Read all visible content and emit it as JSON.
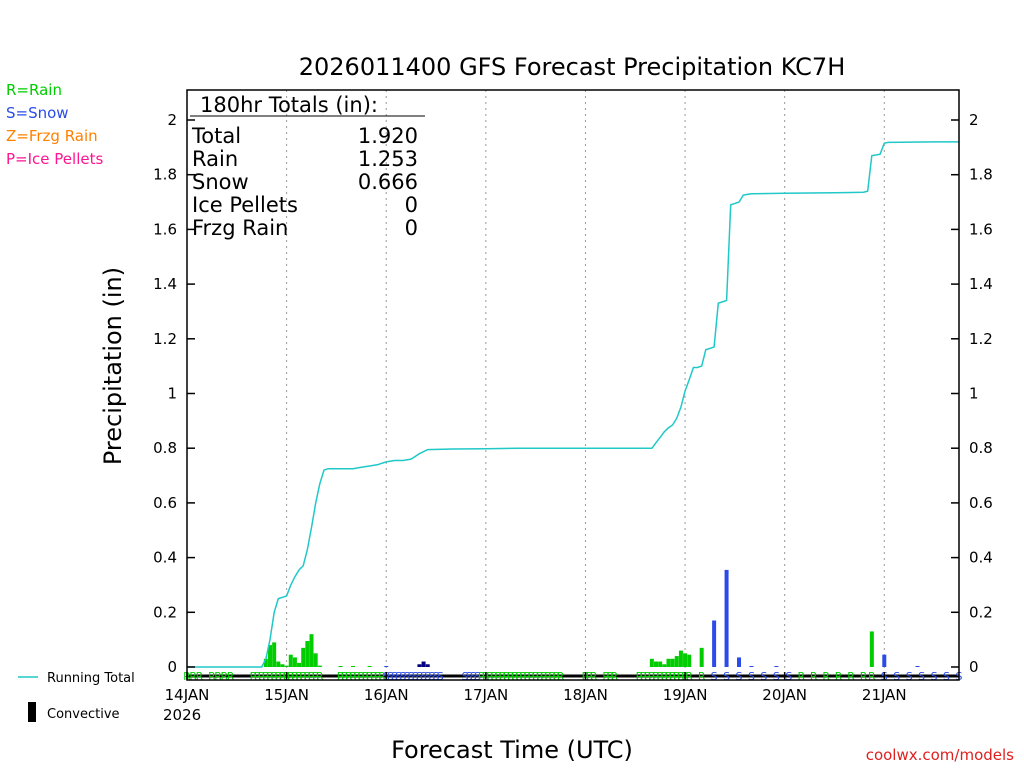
{
  "chart_data": {
    "type": "line",
    "title": "2026011400 GFS Forecast Precipitation KC7H",
    "xlabel": "Forecast Time (UTC)",
    "ylabel": "Precipitation (in)",
    "ylim": [
      0,
      2.1
    ],
    "yticks": [
      "0",
      "0.2",
      "0.4",
      "0.6",
      "0.8",
      "1",
      "1.2",
      "1.4",
      "1.6",
      "1.8",
      "2"
    ],
    "xlim_hours": [
      0,
      186
    ],
    "xticks": [
      {
        "label": "14JAN",
        "hour": 0
      },
      {
        "label": "15JAN",
        "hour": 24
      },
      {
        "label": "16JAN",
        "hour": 48
      },
      {
        "label": "17JAN",
        "hour": 72
      },
      {
        "label": "18JAN",
        "hour": 96
      },
      {
        "label": "19JAN",
        "hour": 120
      },
      {
        "label": "20JAN",
        "hour": 144
      },
      {
        "label": "21JAN",
        "hour": 168
      }
    ],
    "year_label": "2026",
    "grid": "dotted-vertical",
    "legend_types": [
      {
        "label": "R=Rain",
        "color": "#00cc00"
      },
      {
        "label": "S=Snow",
        "color": "#2b4be8"
      },
      {
        "label": "Z=Frzg Rain",
        "color": "#ff8000"
      },
      {
        "label": "P=Ice Pellets",
        "color": "#ff1493"
      }
    ],
    "legend_series": {
      "running_total": "Running Total",
      "convective": "Convective"
    },
    "totals_header": "180hr Totals (in):",
    "totals": [
      {
        "label": "Total",
        "value": "1.920"
      },
      {
        "label": "Rain",
        "value": "1.253"
      },
      {
        "label": "Snow",
        "value": "0.666"
      },
      {
        "label": "Ice Pellets",
        "value": "0"
      },
      {
        "label": "Frzg Rain",
        "value": "0"
      }
    ],
    "watermark": "coolwx.com/models",
    "running_total_color": "#20c8c8",
    "running_total": [
      [
        0,
        0
      ],
      [
        18,
        0
      ],
      [
        19,
        0.03
      ],
      [
        20,
        0.1
      ],
      [
        21,
        0.2
      ],
      [
        22,
        0.25
      ],
      [
        23,
        0.255
      ],
      [
        24,
        0.26
      ],
      [
        25,
        0.3
      ],
      [
        26,
        0.33
      ],
      [
        27,
        0.355
      ],
      [
        28,
        0.37
      ],
      [
        29,
        0.43
      ],
      [
        30,
        0.51
      ],
      [
        31,
        0.6
      ],
      [
        32,
        0.67
      ],
      [
        33,
        0.72
      ],
      [
        34,
        0.725
      ],
      [
        36,
        0.725
      ],
      [
        40,
        0.725
      ],
      [
        42,
        0.73
      ],
      [
        44,
        0.735
      ],
      [
        46,
        0.74
      ],
      [
        48,
        0.75
      ],
      [
        50,
        0.755
      ],
      [
        52,
        0.755
      ],
      [
        54,
        0.76
      ],
      [
        56,
        0.78
      ],
      [
        58,
        0.795
      ],
      [
        64,
        0.797
      ],
      [
        72,
        0.798
      ],
      [
        80,
        0.8
      ],
      [
        96,
        0.8
      ],
      [
        108,
        0.8
      ],
      [
        112,
        0.8
      ],
      [
        113,
        0.82
      ],
      [
        114,
        0.84
      ],
      [
        115,
        0.86
      ],
      [
        116,
        0.875
      ],
      [
        117,
        0.885
      ],
      [
        118,
        0.91
      ],
      [
        119,
        0.95
      ],
      [
        120,
        1.01
      ],
      [
        121,
        1.05
      ],
      [
        122,
        1.095
      ],
      [
        123,
        1.095
      ],
      [
        124,
        1.1
      ],
      [
        125,
        1.16
      ],
      [
        126,
        1.165
      ],
      [
        127,
        1.17
      ],
      [
        128,
        1.33
      ],
      [
        129,
        1.335
      ],
      [
        130,
        1.34
      ],
      [
        131,
        1.69
      ],
      [
        132,
        1.695
      ],
      [
        133,
        1.7
      ],
      [
        134,
        1.725
      ],
      [
        135,
        1.728
      ],
      [
        136,
        1.73
      ],
      [
        144,
        1.732
      ],
      [
        156,
        1.734
      ],
      [
        160,
        1.735
      ],
      [
        163,
        1.736
      ],
      [
        164,
        1.74
      ],
      [
        165,
        1.87
      ],
      [
        166,
        1.872
      ],
      [
        167,
        1.875
      ],
      [
        168,
        1.915
      ],
      [
        169,
        1.918
      ],
      [
        172,
        1.919
      ],
      [
        180,
        1.92
      ],
      [
        186,
        1.92
      ]
    ],
    "bars": [
      {
        "hour": 19,
        "value": 0.03,
        "type": "rain"
      },
      {
        "hour": 20,
        "value": 0.08,
        "type": "rain"
      },
      {
        "hour": 21,
        "value": 0.09,
        "type": "rain"
      },
      {
        "hour": 22,
        "value": 0.02,
        "type": "rain"
      },
      {
        "hour": 23,
        "value": 0.01,
        "type": "rain"
      },
      {
        "hour": 24,
        "value": 0.005,
        "type": "rain"
      },
      {
        "hour": 25,
        "value": 0.045,
        "type": "rain"
      },
      {
        "hour": 26,
        "value": 0.035,
        "type": "rain"
      },
      {
        "hour": 27,
        "value": 0.015,
        "type": "rain"
      },
      {
        "hour": 28,
        "value": 0.07,
        "type": "rain"
      },
      {
        "hour": 29,
        "value": 0.095,
        "type": "rain"
      },
      {
        "hour": 30,
        "value": 0.12,
        "type": "rain"
      },
      {
        "hour": 31,
        "value": 0.05,
        "type": "rain"
      },
      {
        "hour": 32,
        "value": 0.005,
        "type": "rain"
      },
      {
        "hour": 37,
        "value": 0.003,
        "type": "rain"
      },
      {
        "hour": 40,
        "value": 0.003,
        "type": "rain"
      },
      {
        "hour": 44,
        "value": 0.003,
        "type": "rain"
      },
      {
        "hour": 48,
        "value": 0.003,
        "type": "snow"
      },
      {
        "hour": 56,
        "value": 0.01,
        "type": "convective"
      },
      {
        "hour": 57,
        "value": 0.02,
        "type": "convective"
      },
      {
        "hour": 58,
        "value": 0.01,
        "type": "convective"
      },
      {
        "hour": 112,
        "value": 0.03,
        "type": "rain"
      },
      {
        "hour": 113,
        "value": 0.02,
        "type": "rain"
      },
      {
        "hour": 114,
        "value": 0.02,
        "type": "rain"
      },
      {
        "hour": 115,
        "value": 0.01,
        "type": "rain"
      },
      {
        "hour": 116,
        "value": 0.03,
        "type": "rain"
      },
      {
        "hour": 117,
        "value": 0.03,
        "type": "rain"
      },
      {
        "hour": 118,
        "value": 0.04,
        "type": "rain"
      },
      {
        "hour": 119,
        "value": 0.06,
        "type": "rain"
      },
      {
        "hour": 120,
        "value": 0.05,
        "type": "rain"
      },
      {
        "hour": 121,
        "value": 0.045,
        "type": "rain"
      },
      {
        "hour": 124,
        "value": 0.07,
        "type": "rain"
      },
      {
        "hour": 127,
        "value": 0.17,
        "type": "snow"
      },
      {
        "hour": 130,
        "value": 0.355,
        "type": "snow"
      },
      {
        "hour": 133,
        "value": 0.035,
        "type": "snow"
      },
      {
        "hour": 136,
        "value": 0.003,
        "type": "snow"
      },
      {
        "hour": 142,
        "value": 0.003,
        "type": "snow"
      },
      {
        "hour": 165,
        "value": 0.13,
        "type": "rain"
      },
      {
        "hour": 168,
        "value": 0.045,
        "type": "snow"
      },
      {
        "hour": 176,
        "value": 0.003,
        "type": "snow"
      }
    ],
    "ptype_markers": [
      {
        "hour": 0,
        "type": "R"
      },
      {
        "hour": 1.5,
        "type": "R"
      },
      {
        "hour": 3,
        "type": "R"
      },
      {
        "hour": 6,
        "type": "R"
      },
      {
        "hour": 7.5,
        "type": "R"
      },
      {
        "hour": 9,
        "type": "R"
      },
      {
        "hour": 10.5,
        "type": "R"
      },
      {
        "hour": 16,
        "type": "R"
      },
      {
        "hour": 17,
        "type": "R"
      },
      {
        "hour": 18,
        "type": "R"
      },
      {
        "hour": 19,
        "type": "R"
      },
      {
        "hour": 20,
        "type": "R"
      },
      {
        "hour": 21,
        "type": "R"
      },
      {
        "hour": 22,
        "type": "R"
      },
      {
        "hour": 23,
        "type": "R"
      },
      {
        "hour": 24,
        "type": "R"
      },
      {
        "hour": 25,
        "type": "R"
      },
      {
        "hour": 26,
        "type": "R"
      },
      {
        "hour": 27,
        "type": "R"
      },
      {
        "hour": 28,
        "type": "R"
      },
      {
        "hour": 29,
        "type": "R"
      },
      {
        "hour": 30,
        "type": "R"
      },
      {
        "hour": 31,
        "type": "R"
      },
      {
        "hour": 32,
        "type": "R"
      },
      {
        "hour": 37,
        "type": "R"
      },
      {
        "hour": 38,
        "type": "R"
      },
      {
        "hour": 39,
        "type": "R"
      },
      {
        "hour": 40,
        "type": "R"
      },
      {
        "hour": 41,
        "type": "R"
      },
      {
        "hour": 42,
        "type": "R"
      },
      {
        "hour": 43,
        "type": "R"
      },
      {
        "hour": 44,
        "type": "R"
      },
      {
        "hour": 45,
        "type": "R"
      },
      {
        "hour": 46,
        "type": "R"
      },
      {
        "hour": 47,
        "type": "R"
      },
      {
        "hour": 48,
        "type": "S"
      },
      {
        "hour": 49,
        "type": "S"
      },
      {
        "hour": 50,
        "type": "S"
      },
      {
        "hour": 51,
        "type": "S"
      },
      {
        "hour": 52,
        "type": "S"
      },
      {
        "hour": 53,
        "type": "S"
      },
      {
        "hour": 54,
        "type": "S"
      },
      {
        "hour": 55,
        "type": "S"
      },
      {
        "hour": 56,
        "type": "S"
      },
      {
        "hour": 57,
        "type": "S"
      },
      {
        "hour": 58,
        "type": "S"
      },
      {
        "hour": 59,
        "type": "S"
      },
      {
        "hour": 60,
        "type": "S"
      },
      {
        "hour": 61,
        "type": "S"
      },
      {
        "hour": 67,
        "type": "S"
      },
      {
        "hour": 68,
        "type": "S"
      },
      {
        "hour": 69,
        "type": "S"
      },
      {
        "hour": 70,
        "type": "S"
      },
      {
        "hour": 71,
        "type": "R"
      },
      {
        "hour": 72,
        "type": "R"
      },
      {
        "hour": 73,
        "type": "R"
      },
      {
        "hour": 74,
        "type": "R"
      },
      {
        "hour": 75,
        "type": "R"
      },
      {
        "hour": 76,
        "type": "R"
      },
      {
        "hour": 77,
        "type": "R"
      },
      {
        "hour": 78,
        "type": "R"
      },
      {
        "hour": 79,
        "type": "R"
      },
      {
        "hour": 80,
        "type": "R"
      },
      {
        "hour": 81,
        "type": "R"
      },
      {
        "hour": 82,
        "type": "R"
      },
      {
        "hour": 83,
        "type": "R"
      },
      {
        "hour": 84,
        "type": "R"
      },
      {
        "hour": 85,
        "type": "R"
      },
      {
        "hour": 86,
        "type": "R"
      },
      {
        "hour": 87,
        "type": "R"
      },
      {
        "hour": 88,
        "type": "R"
      },
      {
        "hour": 89,
        "type": "R"
      },
      {
        "hour": 90,
        "type": "R"
      },
      {
        "hour": 96,
        "type": "R"
      },
      {
        "hour": 97,
        "type": "R"
      },
      {
        "hour": 98,
        "type": "R"
      },
      {
        "hour": 101,
        "type": "R"
      },
      {
        "hour": 102,
        "type": "R"
      },
      {
        "hour": 103,
        "type": "R"
      },
      {
        "hour": 109,
        "type": "R"
      },
      {
        "hour": 110,
        "type": "R"
      },
      {
        "hour": 111,
        "type": "R"
      },
      {
        "hour": 112,
        "type": "R"
      },
      {
        "hour": 113,
        "type": "R"
      },
      {
        "hour": 114,
        "type": "R"
      },
      {
        "hour": 115,
        "type": "R"
      },
      {
        "hour": 116,
        "type": "R"
      },
      {
        "hour": 117,
        "type": "R"
      },
      {
        "hour": 118,
        "type": "R"
      },
      {
        "hour": 119,
        "type": "R"
      },
      {
        "hour": 120,
        "type": "R"
      },
      {
        "hour": 121,
        "type": "R"
      },
      {
        "hour": 124,
        "type": "R"
      },
      {
        "hour": 127,
        "type": "S"
      },
      {
        "hour": 130,
        "type": "S"
      },
      {
        "hour": 133,
        "type": "S"
      },
      {
        "hour": 136,
        "type": "S"
      },
      {
        "hour": 139,
        "type": "S"
      },
      {
        "hour": 142,
        "type": "S"
      },
      {
        "hour": 145,
        "type": "S"
      },
      {
        "hour": 148,
        "type": "R"
      },
      {
        "hour": 151,
        "type": "R"
      },
      {
        "hour": 154,
        "type": "R"
      },
      {
        "hour": 157,
        "type": "R"
      },
      {
        "hour": 160,
        "type": "R"
      },
      {
        "hour": 163,
        "type": "R"
      },
      {
        "hour": 165,
        "type": "R"
      },
      {
        "hour": 168,
        "type": "S"
      },
      {
        "hour": 171,
        "type": "S"
      },
      {
        "hour": 174,
        "type": "S"
      },
      {
        "hour": 177,
        "type": "S"
      },
      {
        "hour": 180,
        "type": "S"
      },
      {
        "hour": 183,
        "type": "S"
      },
      {
        "hour": 186,
        "type": "S"
      }
    ]
  }
}
